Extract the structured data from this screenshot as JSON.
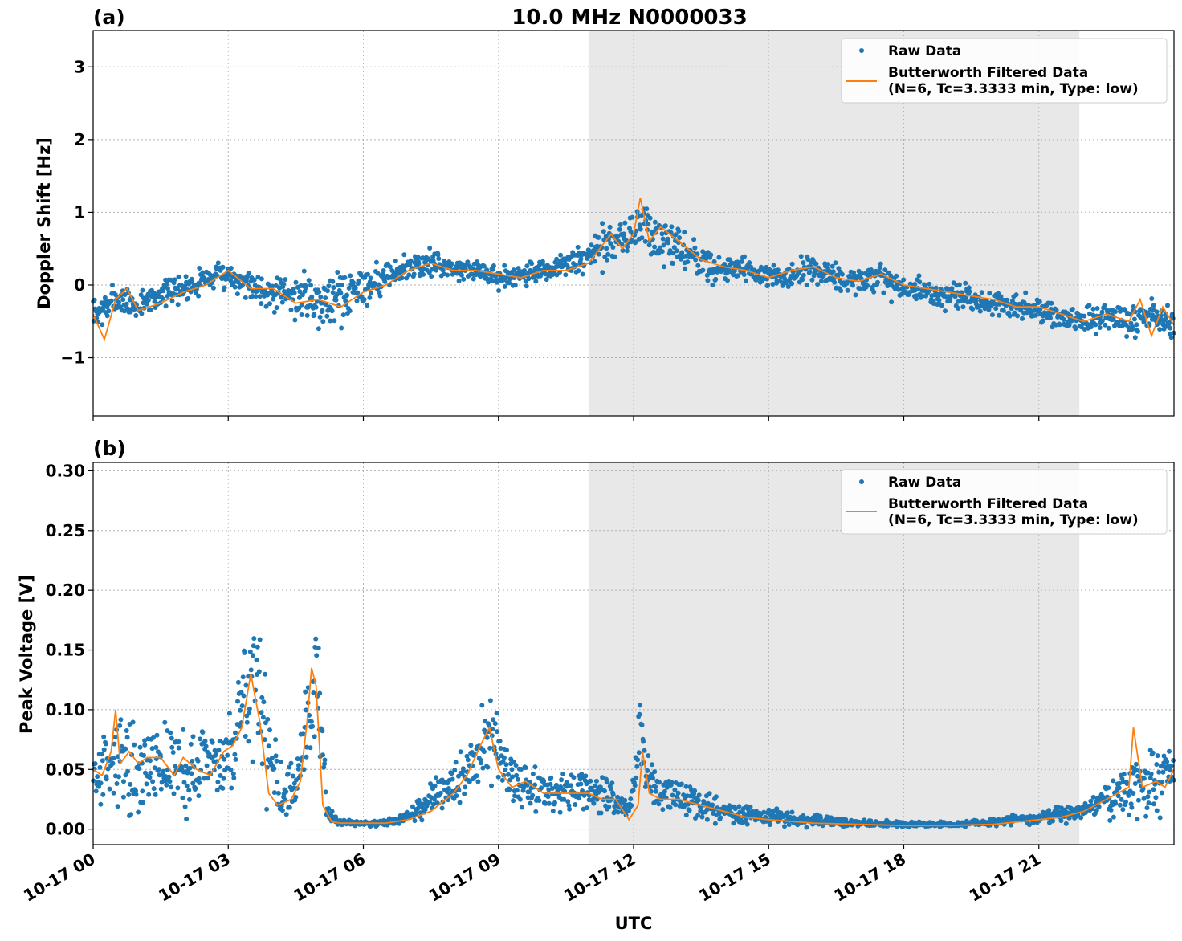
{
  "figure": {
    "title": "10.0 MHz N0000033",
    "xlabel": "UTC",
    "colors": {
      "raw": "#1f77b4",
      "filtered": "#ff7f0e",
      "shade": "#e8e8e8",
      "grid": "#b0b0b0"
    }
  },
  "chart_data": [
    {
      "type": "scatter",
      "panel_label": "(a)",
      "ylabel": "Doppler Shift [Hz]",
      "xlim": [
        "10-17 00",
        "10-18 00"
      ],
      "xlim_hours": [
        0,
        24
      ],
      "ylim": [
        -1.8,
        3.5
      ],
      "yticks": [
        -1,
        0,
        1,
        2,
        3
      ],
      "ytick_labels": [
        "−1",
        "0",
        "1",
        "2",
        "3"
      ],
      "xticks": [
        "10-17 00",
        "10-17 03",
        "10-17 06",
        "10-17 09",
        "10-17 12",
        "10-17 15",
        "10-17 18",
        "10-17 21"
      ],
      "grid": true,
      "legend_position": "top-right",
      "shaded_span_hours": [
        11.0,
        21.9
      ],
      "series": [
        {
          "name": "Raw Data",
          "style": "dots",
          "x_hours": [
            0,
            0.5,
            1,
            1.5,
            2,
            2.5,
            3,
            3.5,
            4,
            4.5,
            5,
            5.5,
            6,
            6.5,
            7,
            7.5,
            8,
            8.5,
            9,
            9.5,
            10,
            10.5,
            11,
            11.5,
            12,
            12.2,
            12.5,
            13,
            13.5,
            14,
            14.5,
            15,
            15.5,
            16,
            16.5,
            17,
            17.5,
            18,
            18.5,
            19,
            19.5,
            20,
            20.5,
            21,
            21.5,
            22,
            22.5,
            23,
            23.5,
            24
          ],
          "values": [
            -0.45,
            -0.2,
            -0.3,
            -0.1,
            -0.05,
            0.1,
            0.15,
            0.0,
            -0.1,
            -0.15,
            -0.2,
            -0.15,
            0.0,
            0.1,
            0.25,
            0.3,
            0.25,
            0.2,
            0.1,
            0.15,
            0.2,
            0.25,
            0.4,
            0.6,
            0.7,
            0.9,
            0.6,
            0.5,
            0.3,
            0.2,
            0.2,
            0.1,
            0.15,
            0.2,
            0.1,
            0.05,
            0.1,
            -0.05,
            -0.1,
            -0.15,
            -0.2,
            -0.25,
            -0.3,
            -0.35,
            -0.45,
            -0.5,
            -0.45,
            -0.5,
            -0.4,
            -0.5
          ],
          "spread": [
            0.35,
            0.3,
            0.3,
            0.25,
            0.25,
            0.25,
            0.25,
            0.3,
            0.35,
            0.4,
            0.5,
            0.55,
            0.45,
            0.3,
            0.3,
            0.25,
            0.2,
            0.2,
            0.2,
            0.2,
            0.25,
            0.3,
            0.35,
            0.5,
            0.5,
            0.5,
            0.45,
            0.4,
            0.35,
            0.3,
            0.25,
            0.25,
            0.25,
            0.25,
            0.25,
            0.3,
            0.3,
            0.25,
            0.25,
            0.25,
            0.25,
            0.25,
            0.25,
            0.25,
            0.25,
            0.25,
            0.25,
            0.3,
            0.3,
            0.3
          ]
        },
        {
          "name": "Butterworth Filtered Data\n(N=6, Tc=3.3333 min, Type: low)",
          "style": "line",
          "x_hours": [
            0,
            0.25,
            0.5,
            0.75,
            1,
            1.5,
            2,
            2.5,
            3,
            3.5,
            4,
            4.5,
            5,
            5.5,
            6,
            6.5,
            7,
            7.5,
            8,
            8.5,
            9,
            9.5,
            10,
            10.5,
            11,
            11.25,
            11.5,
            11.75,
            12,
            12.15,
            12.35,
            12.6,
            13,
            13.5,
            14,
            14.5,
            15,
            15.5,
            16,
            16.5,
            17,
            17.5,
            18,
            18.5,
            19,
            19.5,
            20,
            20.5,
            21,
            21.5,
            22,
            22.5,
            23,
            23.25,
            23.5,
            23.75,
            24
          ],
          "values": [
            -0.4,
            -0.75,
            -0.2,
            -0.05,
            -0.35,
            -0.25,
            -0.1,
            0.0,
            0.2,
            -0.05,
            -0.05,
            -0.25,
            -0.2,
            -0.3,
            -0.1,
            0.0,
            0.2,
            0.3,
            0.2,
            0.2,
            0.15,
            0.1,
            0.2,
            0.2,
            0.3,
            0.5,
            0.7,
            0.5,
            0.7,
            1.2,
            0.6,
            0.8,
            0.6,
            0.35,
            0.25,
            0.2,
            0.1,
            0.2,
            0.25,
            0.1,
            0.05,
            0.15,
            0.0,
            -0.05,
            -0.1,
            -0.15,
            -0.2,
            -0.3,
            -0.3,
            -0.4,
            -0.5,
            -0.4,
            -0.5,
            -0.2,
            -0.7,
            -0.3,
            -0.55
          ]
        }
      ]
    },
    {
      "type": "scatter",
      "panel_label": "(b)",
      "ylabel": "Peak Voltage [V]",
      "xlabel": "UTC",
      "xlim": [
        "10-17 00",
        "10-18 00"
      ],
      "xlim_hours": [
        0,
        24
      ],
      "ylim": [
        -0.013,
        0.307
      ],
      "yticks": [
        0.0,
        0.05,
        0.1,
        0.15,
        0.2,
        0.25,
        0.3
      ],
      "ytick_labels": [
        "0.00",
        "0.05",
        "0.10",
        "0.15",
        "0.20",
        "0.25",
        "0.30"
      ],
      "xticks": [
        "10-17 00",
        "10-17 03",
        "10-17 06",
        "10-17 09",
        "10-17 12",
        "10-17 15",
        "10-17 18",
        "10-17 21"
      ],
      "grid": true,
      "legend_position": "top-right",
      "shaded_span_hours": [
        11.0,
        21.9
      ],
      "series": [
        {
          "name": "Raw Data",
          "style": "dots",
          "x_hours": [
            0,
            0.5,
            1,
            1.5,
            2,
            2.5,
            3,
            3.3,
            3.6,
            3.9,
            4.2,
            4.5,
            4.75,
            4.95,
            5.2,
            5.5,
            6,
            6.5,
            7,
            7.5,
            8,
            8.5,
            8.8,
            9.2,
            9.5,
            10,
            10.5,
            11,
            11.5,
            11.9,
            12.15,
            12.3,
            12.6,
            13,
            13.5,
            14,
            14.5,
            15,
            16,
            17,
            18,
            19,
            20,
            21,
            22,
            22.5,
            23,
            23.5,
            24
          ],
          "values": [
            0.045,
            0.06,
            0.05,
            0.06,
            0.05,
            0.05,
            0.055,
            0.09,
            0.14,
            0.06,
            0.03,
            0.04,
            0.09,
            0.13,
            0.01,
            0.006,
            0.005,
            0.005,
            0.01,
            0.025,
            0.04,
            0.06,
            0.08,
            0.045,
            0.035,
            0.035,
            0.035,
            0.032,
            0.028,
            0.012,
            0.08,
            0.04,
            0.03,
            0.03,
            0.02,
            0.015,
            0.012,
            0.01,
            0.007,
            0.005,
            0.004,
            0.004,
            0.006,
            0.01,
            0.015,
            0.025,
            0.035,
            0.04,
            0.045
          ],
          "spread": [
            0.04,
            0.05,
            0.05,
            0.05,
            0.05,
            0.05,
            0.05,
            0.07,
            0.1,
            0.05,
            0.03,
            0.04,
            0.06,
            0.08,
            0.01,
            0.003,
            0.003,
            0.004,
            0.008,
            0.02,
            0.03,
            0.04,
            0.05,
            0.03,
            0.03,
            0.03,
            0.03,
            0.025,
            0.02,
            0.01,
            0.05,
            0.03,
            0.025,
            0.025,
            0.02,
            0.015,
            0.012,
            0.01,
            0.007,
            0.004,
            0.003,
            0.003,
            0.005,
            0.008,
            0.012,
            0.02,
            0.03,
            0.04,
            0.04
          ]
        },
        {
          "name": "Butterworth Filtered Data\n(N=6, Tc=3.3333 min, Type: low)",
          "style": "line",
          "x_hours": [
            0,
            0.2,
            0.4,
            0.5,
            0.6,
            0.8,
            1,
            1.2,
            1.5,
            1.8,
            2,
            2.3,
            2.6,
            2.9,
            3.1,
            3.3,
            3.5,
            3.7,
            3.9,
            4.1,
            4.4,
            4.6,
            4.75,
            4.85,
            4.95,
            5.1,
            5.3,
            5.5,
            6,
            6.5,
            7,
            7.5,
            8,
            8.3,
            8.6,
            8.8,
            9,
            9.3,
            9.6,
            10,
            10.5,
            11,
            11.3,
            11.6,
            11.9,
            12.1,
            12.2,
            12.35,
            12.6,
            13,
            13.5,
            14,
            14.5,
            15,
            16,
            17,
            18,
            19,
            20,
            21,
            21.5,
            22,
            22.5,
            23,
            23.1,
            23.3,
            23.6,
            23.8,
            24
          ],
          "values": [
            0.05,
            0.045,
            0.065,
            0.1,
            0.055,
            0.065,
            0.055,
            0.06,
            0.06,
            0.045,
            0.06,
            0.05,
            0.045,
            0.065,
            0.07,
            0.085,
            0.13,
            0.09,
            0.03,
            0.02,
            0.025,
            0.04,
            0.09,
            0.135,
            0.12,
            0.02,
            0.006,
            0.005,
            0.005,
            0.005,
            0.008,
            0.015,
            0.03,
            0.045,
            0.07,
            0.085,
            0.05,
            0.035,
            0.04,
            0.03,
            0.03,
            0.03,
            0.025,
            0.025,
            0.008,
            0.02,
            0.065,
            0.03,
            0.025,
            0.025,
            0.02,
            0.015,
            0.01,
            0.008,
            0.005,
            0.004,
            0.003,
            0.003,
            0.004,
            0.008,
            0.01,
            0.015,
            0.025,
            0.035,
            0.085,
            0.035,
            0.04,
            0.035,
            0.05
          ]
        }
      ]
    }
  ]
}
